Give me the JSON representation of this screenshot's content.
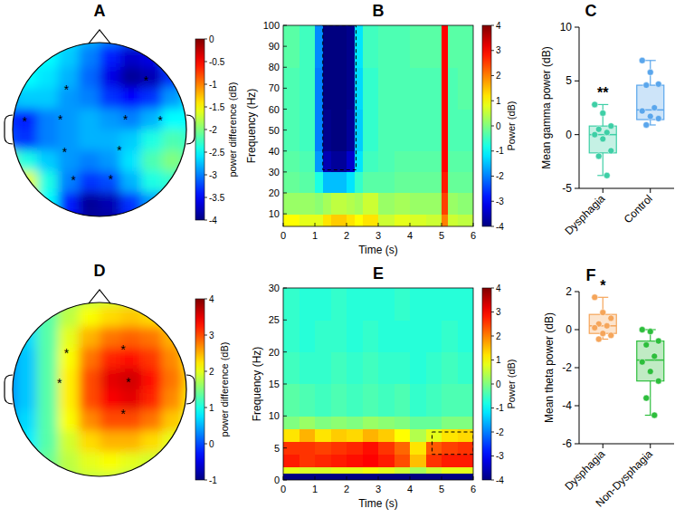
{
  "chart_data": [
    {
      "panel": "A",
      "type": "topomap",
      "clim": [
        -4,
        0
      ],
      "cticks": [
        0,
        -0.5,
        -1,
        -1.5,
        -2,
        -2.5,
        -3,
        -3.5,
        -4
      ],
      "colorbar_label": "power difference (dB)",
      "cells": [
        [
          -2.4,
          -2.4,
          -2.5,
          -2.6,
          -2.8,
          -3.0,
          -3.2,
          -3.2,
          -3.0,
          -2.8
        ],
        [
          -2.3,
          -2.4,
          -2.5,
          -2.7,
          -3.0,
          -3.4,
          -3.7,
          -3.6,
          -3.2,
          -2.8
        ],
        [
          -2.4,
          -2.5,
          -2.6,
          -2.8,
          -3.1,
          -3.6,
          -3.9,
          -3.8,
          -3.3,
          -2.7
        ],
        [
          -2.8,
          -2.7,
          -2.7,
          -2.9,
          -3.0,
          -3.3,
          -3.5,
          -3.3,
          -2.9,
          -2.6
        ],
        [
          -3.3,
          -3.4,
          -3.0,
          -2.9,
          -2.8,
          -2.9,
          -3.0,
          -2.8,
          -2.5,
          -2.5
        ],
        [
          -3.2,
          -3.3,
          -3.0,
          -2.9,
          -2.8,
          -2.8,
          -2.7,
          -2.4,
          -2.2,
          -2.3
        ],
        [
          -2.0,
          -2.4,
          -2.7,
          -2.9,
          -3.0,
          -2.9,
          -2.6,
          -2.2,
          -2.0,
          -2.2
        ],
        [
          -1.2,
          -1.6,
          -2.4,
          -3.0,
          -3.3,
          -3.2,
          -2.8,
          -2.4,
          -2.3,
          -2.5
        ],
        [
          -1.3,
          -1.7,
          -2.5,
          -3.4,
          -3.9,
          -3.8,
          -3.3,
          -2.9,
          -2.8,
          -2.8
        ],
        [
          -1.8,
          -2.2,
          -2.8,
          -3.5,
          -3.9,
          -3.9,
          -3.5,
          -3.1,
          -2.9,
          -2.9
        ]
      ],
      "significant_electrodes": [
        {
          "x": -0.38,
          "y": 0.47,
          "label": "*"
        },
        {
          "x": 0.54,
          "y": 0.57,
          "label": "*"
        },
        {
          "x": -0.86,
          "y": 0.1,
          "label": "*"
        },
        {
          "x": -0.45,
          "y": 0.12,
          "label": "*"
        },
        {
          "x": 0.3,
          "y": 0.12,
          "label": "*"
        },
        {
          "x": 0.7,
          "y": 0.11,
          "label": "*"
        },
        {
          "x": -0.4,
          "y": -0.25,
          "label": "*"
        },
        {
          "x": 0.23,
          "y": -0.23,
          "label": "*"
        },
        {
          "x": -0.3,
          "y": -0.57,
          "label": "*"
        },
        {
          "x": 0.13,
          "y": -0.56,
          "label": "*"
        }
      ]
    },
    {
      "panel": "B",
      "type": "heatmap",
      "x_label": "Time (s)",
      "y_label": "Frequency (Hz)",
      "xlim": [
        0,
        6
      ],
      "ylim": [
        4,
        100
      ],
      "xticks": [
        0,
        1,
        2,
        3,
        4,
        5,
        6
      ],
      "yticks": [
        10,
        20,
        30,
        40,
        50,
        60,
        70,
        80,
        90,
        100
      ],
      "clim": [
        -4,
        4
      ],
      "cticks": [
        -4,
        -3,
        -2,
        -1,
        0,
        1,
        2,
        3,
        4
      ],
      "colorbar_label": "Power (dB)",
      "x_edges": [
        0,
        0.5,
        1,
        1.25,
        1.5,
        2,
        2.25,
        2.5,
        3,
        3.5,
        4,
        4.5,
        5,
        5.2,
        5.5,
        6
      ],
      "y_edges": [
        4,
        10,
        20,
        30,
        40,
        60,
        80,
        100
      ],
      "cells": [
        [
          1.0,
          0.8,
          0.8,
          1.2,
          1.4,
          1.2,
          1.0,
          1.2,
          0.6,
          0.8,
          0.7,
          0.6,
          2.0,
          0.6,
          0.5
        ],
        [
          0.2,
          0.2,
          0.1,
          0.3,
          0.5,
          0.4,
          0.3,
          0.6,
          0.2,
          0.3,
          0.2,
          0.2,
          2.5,
          0.2,
          0.1
        ],
        [
          -0.2,
          -0.3,
          -0.8,
          -1.5,
          -1.5,
          -1.2,
          -0.6,
          -0.3,
          -0.3,
          -0.2,
          -0.2,
          -0.2,
          2.8,
          -0.2,
          -0.2
        ],
        [
          -0.3,
          -0.4,
          -1.8,
          -3.6,
          -3.8,
          -3.4,
          -1.2,
          -0.5,
          -0.4,
          -0.3,
          -0.3,
          -0.3,
          3.0,
          -0.3,
          -0.3
        ],
        [
          -0.4,
          -0.5,
          -2.0,
          -3.9,
          -4.0,
          -3.8,
          -1.4,
          -0.6,
          -0.4,
          -0.4,
          -0.4,
          -0.4,
          3.0,
          -0.4,
          -0.4
        ],
        [
          -0.4,
          -0.5,
          -2.0,
          -4.0,
          -4.0,
          -3.9,
          -1.3,
          -0.6,
          -0.4,
          -0.4,
          -0.4,
          -0.4,
          3.0,
          -0.4,
          -0.3
        ],
        [
          -0.3,
          -0.5,
          -1.9,
          -4.0,
          -4.0,
          -3.9,
          -1.2,
          -0.5,
          -0.4,
          -0.4,
          -0.3,
          -0.3,
          3.0,
          -0.3,
          -0.3
        ]
      ],
      "highlight_box": {
        "x": [
          1.25,
          2.3
        ],
        "y": [
          31,
          100
        ]
      }
    },
    {
      "panel": "C",
      "type": "box",
      "y_label": "Mean gamma power (dB)",
      "ylim": [
        -5,
        10
      ],
      "yticks": [
        -5,
        0,
        5,
        10
      ],
      "categories": [
        "Dysphagia",
        "Control"
      ],
      "colors": [
        "#3ecfa6",
        "#5aa6ec"
      ],
      "boxes": [
        {
          "min": -3.8,
          "q1": -1.7,
          "median": 0,
          "q3": 0.8,
          "max": 2.8
        },
        {
          "min": 0.9,
          "q1": 1.4,
          "median": 2.3,
          "q3": 4.6,
          "max": 6.9
        }
      ],
      "points": [
        [
          2.8,
          2.0,
          0.8,
          0.5,
          0.2,
          0,
          -0.4,
          -1.5,
          -2.0,
          -3.8
        ],
        [
          6.9,
          5.8,
          4.7,
          4.6,
          2.5,
          2.2,
          1.7,
          1.5,
          0.9
        ]
      ],
      "annotations": [
        {
          "category": 0,
          "text": "**"
        }
      ]
    },
    {
      "panel": "D",
      "type": "topomap",
      "clim": [
        -1,
        4
      ],
      "cticks": [
        4,
        3,
        2,
        1,
        0,
        -1
      ],
      "colorbar_label": "power difference (dB)",
      "cells": [
        [
          0.6,
          0.9,
          1.3,
          1.6,
          1.8,
          1.9,
          1.9,
          1.8,
          1.7,
          1.6
        ],
        [
          0.5,
          0.8,
          1.3,
          1.8,
          2.1,
          2.3,
          2.4,
          2.3,
          2.1,
          1.8
        ],
        [
          0.4,
          0.7,
          1.3,
          2.0,
          2.5,
          2.8,
          2.9,
          2.8,
          2.5,
          2.1
        ],
        [
          0.3,
          0.6,
          1.3,
          2.1,
          2.8,
          3.2,
          3.3,
          3.1,
          2.7,
          2.2
        ],
        [
          0.3,
          0.6,
          1.3,
          2.2,
          3.0,
          3.5,
          3.6,
          3.3,
          2.8,
          2.3
        ],
        [
          0.3,
          0.6,
          1.3,
          2.2,
          3.0,
          3.4,
          3.5,
          3.2,
          2.7,
          2.2
        ],
        [
          0.4,
          0.7,
          1.3,
          2.1,
          2.7,
          3.0,
          3.0,
          2.8,
          2.4,
          2.0
        ],
        [
          0.6,
          0.8,
          1.3,
          1.9,
          2.3,
          2.5,
          2.5,
          2.3,
          2.0,
          1.8
        ],
        [
          0.8,
          1.0,
          1.4,
          1.8,
          2.0,
          2.1,
          2.0,
          1.9,
          1.7,
          1.6
        ],
        [
          1.0,
          1.2,
          1.5,
          1.7,
          1.8,
          1.8,
          1.7,
          1.6,
          1.5,
          1.4
        ]
      ],
      "significant_electrodes": [
        {
          "x": -0.38,
          "y": 0.43,
          "label": "*"
        },
        {
          "x": 0.27,
          "y": 0.47,
          "label": "*"
        },
        {
          "x": -0.46,
          "y": 0.08,
          "label": "*"
        },
        {
          "x": 0.33,
          "y": 0.09,
          "label": "*"
        },
        {
          "x": 0.27,
          "y": -0.27,
          "label": "*"
        }
      ]
    },
    {
      "panel": "E",
      "type": "heatmap",
      "x_label": "Time (s)",
      "y_label": "Frequency (Hz)",
      "xlim": [
        0,
        6
      ],
      "ylim": [
        0,
        30
      ],
      "xticks": [
        0,
        1,
        2,
        3,
        4,
        5,
        6
      ],
      "yticks": [
        0,
        5,
        10,
        15,
        20,
        25,
        30
      ],
      "clim": [
        -4,
        4
      ],
      "cticks": [
        -4,
        -3,
        -2,
        -1,
        0,
        1,
        2,
        3,
        4
      ],
      "colorbar_label": "Power (dB)",
      "x_edges": [
        0,
        0.5,
        1,
        1.5,
        2,
        2.5,
        3,
        3.5,
        4,
        4.5,
        5,
        5.5,
        6
      ],
      "y_edges": [
        0,
        1,
        2,
        4,
        6,
        8,
        10,
        15,
        20,
        25,
        30
      ],
      "cells": [
        [
          -4,
          -4,
          -4,
          -4,
          -4,
          -4,
          -4,
          -4,
          -4,
          -4,
          -4,
          -4
        ],
        [
          0.8,
          0.7,
          0.7,
          0.8,
          0.8,
          0.9,
          0.8,
          0.6,
          0.3,
          0.6,
          0.8,
          0.8
        ],
        [
          2.8,
          2.6,
          2.7,
          2.8,
          2.9,
          3.0,
          2.8,
          2.4,
          1.5,
          2.6,
          2.8,
          2.8
        ],
        [
          2.6,
          2.6,
          2.5,
          2.6,
          2.7,
          2.9,
          2.6,
          2.2,
          1.2,
          2.3,
          2.5,
          2.6
        ],
        [
          1.2,
          1.6,
          1.2,
          1.4,
          1.3,
          1.6,
          1.4,
          1.0,
          0.4,
          0.8,
          1.2,
          1.3
        ],
        [
          0,
          0.2,
          0,
          0.1,
          0,
          0.2,
          0.1,
          0,
          -0.2,
          -0.2,
          0,
          0
        ],
        [
          -0.3,
          -0.4,
          -0.5,
          -0.4,
          -0.5,
          -0.4,
          -0.5,
          -0.4,
          -0.6,
          -0.5,
          -0.4,
          -0.4
        ],
        [
          -0.5,
          -0.6,
          -0.6,
          -0.5,
          -0.6,
          -0.5,
          -0.6,
          -0.6,
          -0.7,
          -0.6,
          -0.5,
          -0.6
        ],
        [
          -0.6,
          -0.7,
          -0.6,
          -0.6,
          -0.7,
          -0.6,
          -0.7,
          -0.7,
          -0.7,
          -0.7,
          -0.6,
          -0.7
        ],
        [
          -0.6,
          -0.7,
          -0.7,
          -0.6,
          -0.7,
          -0.7,
          -0.7,
          -0.6,
          -0.7,
          -0.7,
          -0.7,
          -0.7
        ]
      ],
      "highlight_box": {
        "x": [
          4.7,
          6
        ],
        "y": [
          4,
          7.5
        ]
      }
    },
    {
      "panel": "F",
      "type": "box",
      "y_label": "Mean theta power (dB)",
      "ylim": [
        -6,
        2
      ],
      "yticks": [
        -6,
        -4,
        -2,
        0,
        2
      ],
      "categories": [
        "Dysphagia",
        "Non-Dysphagia"
      ],
      "colors": [
        "#f5a55a",
        "#2dbe3c"
      ],
      "boxes": [
        {
          "min": -0.5,
          "q1": -0.2,
          "median": 0.2,
          "q3": 0.8,
          "max": 1.7
        },
        {
          "min": -4.5,
          "q1": -2.7,
          "median": -1.6,
          "q3": -0.6,
          "max": 0
        }
      ],
      "points": [
        [
          1.7,
          0.9,
          0.6,
          0.3,
          0.2,
          0.1,
          -0.2,
          -0.3,
          -0.5
        ],
        [
          0,
          -0.1,
          -0.6,
          -0.8,
          -1.4,
          -1.7,
          -2.2,
          -2.7,
          -3.6,
          -4.5
        ]
      ],
      "annotations": [
        {
          "category": 0,
          "text": "*"
        }
      ]
    }
  ]
}
